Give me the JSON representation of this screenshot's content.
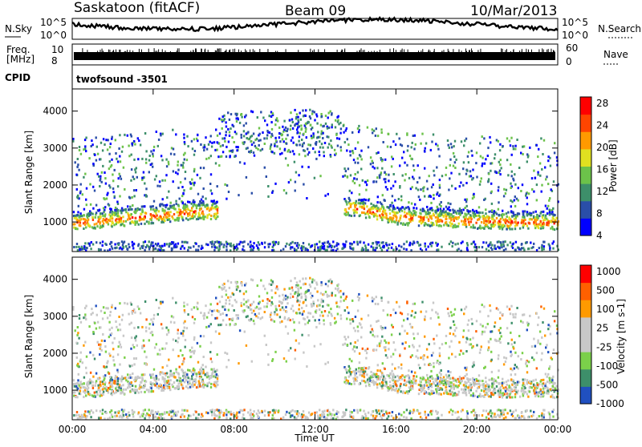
{
  "header": {
    "station": "Saskatoon (fitACF)",
    "beam": "Beam 09",
    "date": "10/Mar/2013"
  },
  "top_panels": {
    "nsky_label": "N.Sky",
    "nsky_ticks": [
      "10^5",
      "10^0"
    ],
    "nsearch_label": "N.Search",
    "nsearch_ticks": [
      "10^5",
      "10^0"
    ],
    "freq_label_1": "Freq.",
    "freq_label_2": "[MHz]",
    "freq_ticks": [
      "10",
      "8"
    ],
    "nave_label": "Nave",
    "nave_ticks": [
      "60",
      "0"
    ],
    "cpid_label": "CPID",
    "cpid_value": "twofsound -3501"
  },
  "chart_data": [
    {
      "type": "heatmap",
      "name": "power",
      "ylabel": "Slant Range [km]",
      "yticks": [
        "4000",
        "3000",
        "2000",
        "1000"
      ],
      "ylim": [
        200,
        4600
      ],
      "colorbar_label": "Power [dB]",
      "colorbar_ticks": [
        "28",
        "24",
        "20",
        "16",
        "12",
        "8",
        "4"
      ],
      "colors": [
        "#0000ff",
        "#2a4ea8",
        "#3d8f6a",
        "#6cc24a",
        "#e0e020",
        "#ff9a00",
        "#ff4500",
        "#ff0000"
      ],
      "band_centers_km": [
        {
          "time": "00:00",
          "range": 1000
        },
        {
          "time": "02:00",
          "range": 1100
        },
        {
          "time": "04:00",
          "range": 1200
        },
        {
          "time": "06:00",
          "range": 1300
        },
        {
          "time": "14:00",
          "range": 1400
        },
        {
          "time": "16:00",
          "range": 1150
        },
        {
          "time": "20:00",
          "range": 1050
        },
        {
          "time": "24:00",
          "range": 1000
        }
      ]
    },
    {
      "type": "heatmap",
      "name": "velocity",
      "ylabel": "Slant Range [km]",
      "yticks": [
        "4000",
        "3000",
        "2000",
        "1000"
      ],
      "ylim": [
        200,
        4600
      ],
      "colorbar_label": "Velocity [m s-1]",
      "colorbar_ticks": [
        "1000",
        "500",
        "100",
        "25",
        "-25",
        "-100",
        "-500",
        "-1000"
      ],
      "colors": [
        "#2050c0",
        "#3d8f6a",
        "#7bd04a",
        "#c8c8c8",
        "#c8c8c8",
        "#ff9a00",
        "#ff6000",
        "#ff0000"
      ]
    }
  ],
  "xaxis": {
    "label": "Time UT",
    "ticks": [
      "00:00",
      "04:00",
      "08:00",
      "12:00",
      "16:00",
      "20:00",
      "00:00"
    ]
  }
}
